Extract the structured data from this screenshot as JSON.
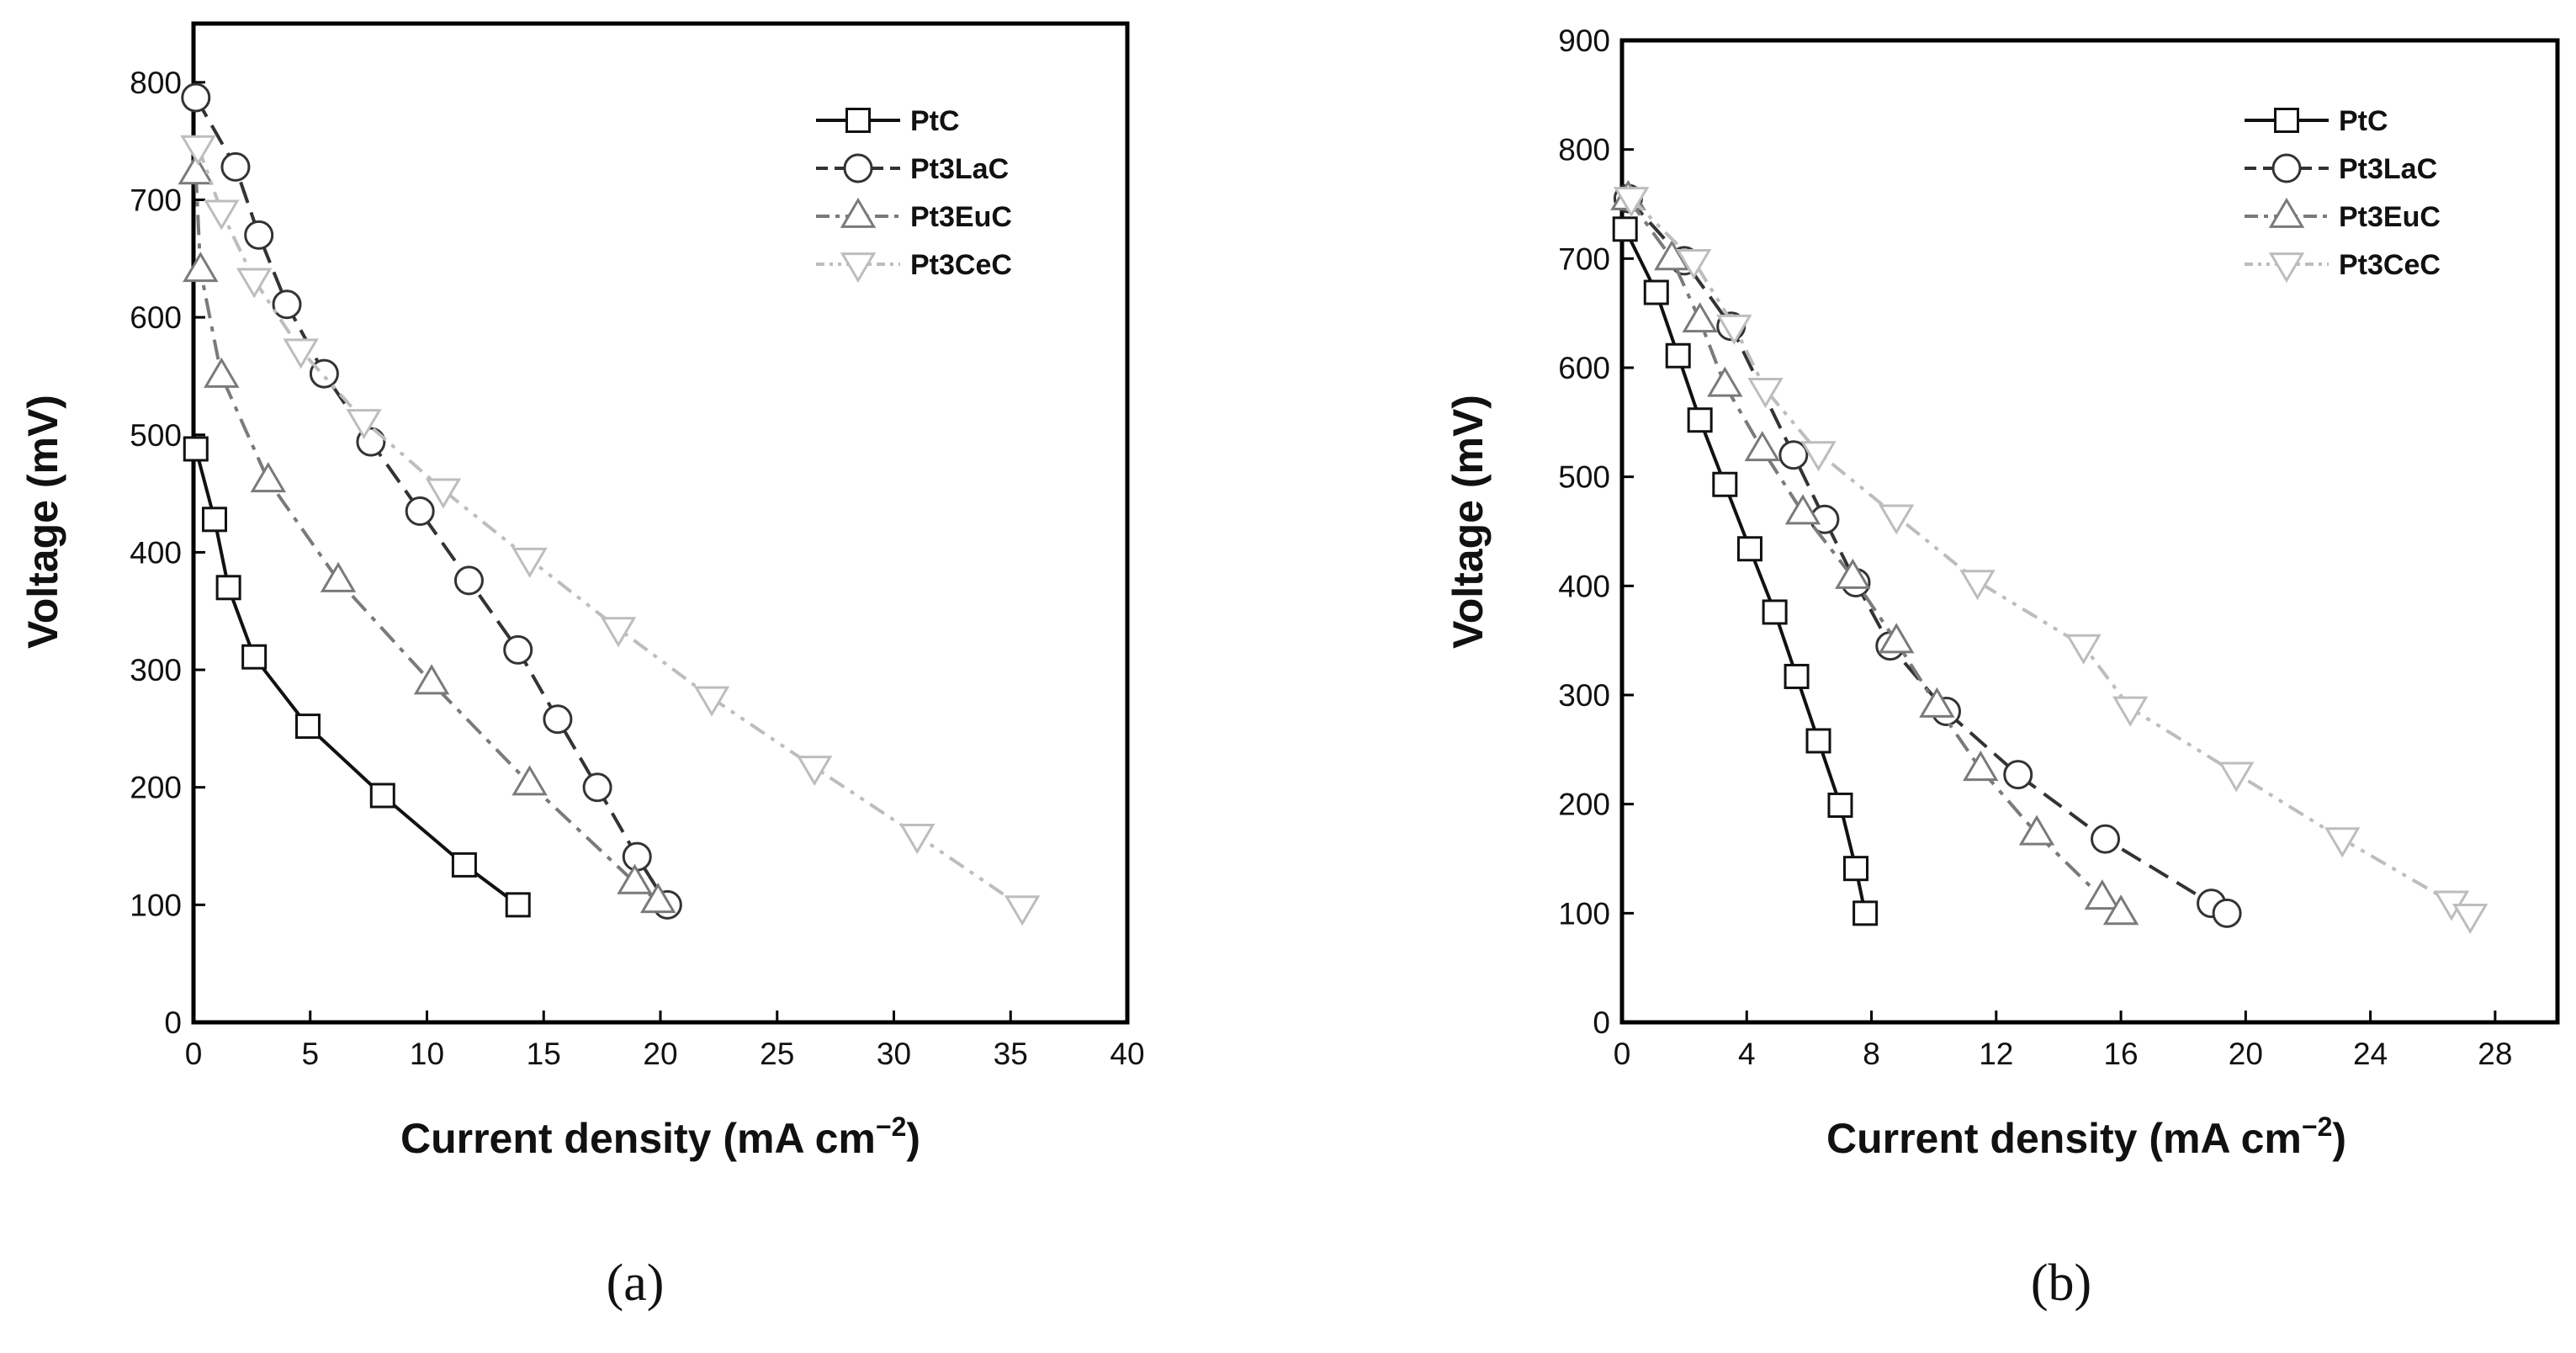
{
  "chart_data": [
    {
      "type": "line",
      "panel_label": "(a)",
      "xlabel": "Current density (mA cm",
      "xlabel_sup": "−2",
      "xlabel_close": ")",
      "ylabel": "Voltage (mV)",
      "xlim": [
        0,
        40
      ],
      "ylim": [
        0,
        850
      ],
      "xticks": [
        0,
        5,
        10,
        15,
        20,
        25,
        30,
        35,
        40
      ],
      "yticks": [
        0,
        100,
        200,
        300,
        400,
        500,
        600,
        700,
        800
      ],
      "legend_position": "top-right",
      "series": [
        {
          "name": "PtC",
          "marker": "square",
          "style": "solid",
          "color": "#111111",
          "x": [
            0.1,
            0.9,
            1.5,
            2.6,
            4.9,
            8.1,
            11.6,
            13.9
          ],
          "y": [
            488,
            428,
            370,
            311,
            252,
            193,
            134,
            100
          ]
        },
        {
          "name": "Pt3LaC",
          "marker": "circle",
          "style": "dash",
          "color": "#333333",
          "x": [
            0.1,
            1.8,
            2.8,
            4.0,
            5.6,
            7.6,
            9.7,
            11.8,
            13.9,
            15.6,
            17.3,
            19.0,
            20.3
          ],
          "y": [
            787,
            728,
            670,
            611,
            552,
            494,
            435,
            376,
            317,
            258,
            200,
            141,
            100
          ]
        },
        {
          "name": "Pt3EuC",
          "marker": "triangle-up",
          "style": "dashdot",
          "color": "#7a7a7a",
          "x": [
            0.1,
            0.3,
            1.2,
            3.2,
            6.2,
            10.2,
            14.4,
            18.9,
            19.9
          ],
          "y": [
            723,
            640,
            550,
            461,
            376,
            289,
            203,
            119,
            103
          ]
        },
        {
          "name": "Pt3CeC",
          "marker": "triangle-down",
          "style": "dashdotdot",
          "color": "#bdbdbd",
          "x": [
            0.2,
            1.2,
            2.6,
            4.6,
            7.3,
            10.7,
            14.4,
            18.2,
            22.2,
            26.6,
            31.0,
            35.5
          ],
          "y": [
            745,
            690,
            632,
            572,
            512,
            453,
            394,
            335,
            276,
            217,
            159,
            98
          ]
        }
      ]
    },
    {
      "type": "line",
      "panel_label": "(b)",
      "xlabel": "Current density (mA cm",
      "xlabel_sup": "−2",
      "xlabel_close": ")",
      "ylabel": "Voltage (mV)",
      "xlim": [
        0,
        30
      ],
      "ylim": [
        0,
        900
      ],
      "xticks": [
        0,
        4,
        8,
        12,
        16,
        20,
        24,
        28
      ],
      "yticks": [
        0,
        100,
        200,
        300,
        400,
        500,
        600,
        700,
        800,
        900
      ],
      "legend_position": "top-right",
      "series": [
        {
          "name": "PtC",
          "marker": "square",
          "style": "solid",
          "color": "#111111",
          "x": [
            0.1,
            1.1,
            1.8,
            2.5,
            3.3,
            4.1,
            4.9,
            5.6,
            6.3,
            7.0,
            7.5,
            7.8
          ],
          "y": [
            727,
            669,
            611,
            552,
            493,
            434,
            376,
            317,
            258,
            199,
            141,
            100
          ]
        },
        {
          "name": "Pt3LaC",
          "marker": "circle",
          "style": "dash",
          "color": "#333333",
          "x": [
            0.2,
            2.0,
            3.5,
            5.5,
            6.5,
            7.5,
            8.6,
            10.4,
            12.7,
            15.5,
            18.9,
            19.4
          ],
          "y": [
            755,
            698,
            638,
            520,
            461,
            403,
            345,
            285,
            227,
            168,
            109,
            100
          ]
        },
        {
          "name": "Pt3EuC",
          "marker": "triangle-up",
          "style": "dashdot",
          "color": "#7a7a7a",
          "x": [
            0.2,
            1.6,
            2.5,
            3.3,
            4.5,
            5.8,
            7.4,
            8.8,
            10.1,
            11.5,
            13.3,
            15.4,
            16.0
          ],
          "y": [
            755,
            700,
            643,
            584,
            525,
            467,
            408,
            349,
            290,
            232,
            173,
            114,
            100
          ]
        },
        {
          "name": "Pt3CeC",
          "marker": "triangle-down",
          "style": "dashdotdot",
          "color": "#bdbdbd",
          "x": [
            0.3,
            2.3,
            3.6,
            4.6,
            6.3,
            8.8,
            11.4,
            14.8,
            16.3,
            19.7,
            23.1,
            26.6,
            27.2
          ],
          "y": [
            755,
            698,
            638,
            580,
            522,
            464,
            404,
            345,
            288,
            228,
            168,
            110,
            98
          ]
        }
      ]
    }
  ]
}
